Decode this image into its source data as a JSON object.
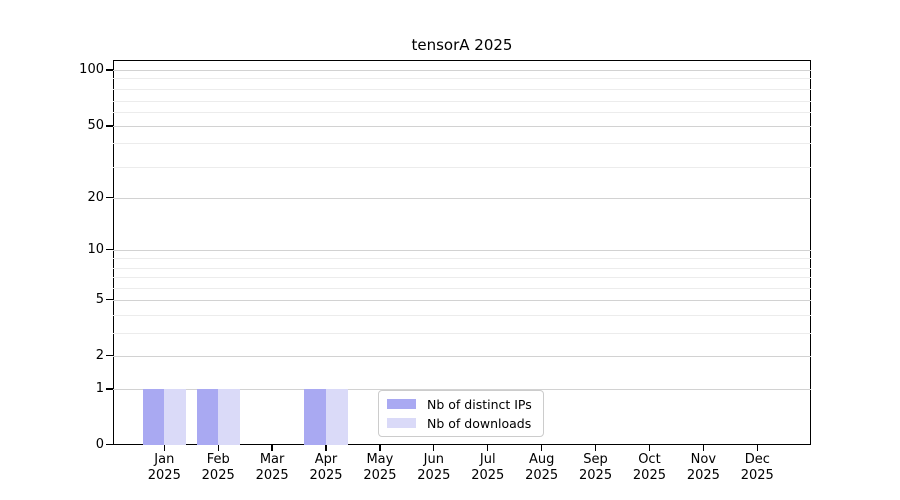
{
  "figure_title": "tensorA 2025",
  "chart_data": {
    "type": "bar",
    "title": "tensorA 2025",
    "categories": [
      "Jan 2025",
      "Feb 2025",
      "Mar 2025",
      "Apr 2025",
      "May 2025",
      "Jun 2025",
      "Jul 2025",
      "Aug 2025",
      "Sep 2025",
      "Oct 2025",
      "Nov 2025",
      "Dec 2025"
    ],
    "series": [
      {
        "name": "Nb of distinct IPs",
        "color": "#a9a9f2",
        "values": [
          1,
          1,
          0,
          1,
          0,
          0,
          0,
          0,
          0,
          0,
          0,
          0
        ]
      },
      {
        "name": "Nb of downloads",
        "color": "#dadaf8",
        "values": [
          1,
          1,
          0,
          1,
          0,
          0,
          0,
          0,
          0,
          0,
          0,
          0
        ]
      }
    ],
    "xlabel": "",
    "ylabel": "",
    "yscale": "symlog",
    "ylim": [
      0,
      110
    ],
    "y_ticks": [
      0,
      1,
      2,
      5,
      10,
      20,
      50,
      100
    ],
    "y_minor_gridlines": [
      3,
      4,
      6,
      7,
      8,
      9,
      30,
      40,
      60,
      70,
      80,
      90
    ],
    "grid": "horizontal major and minor, on",
    "legend_position": "lower center inside plot"
  }
}
